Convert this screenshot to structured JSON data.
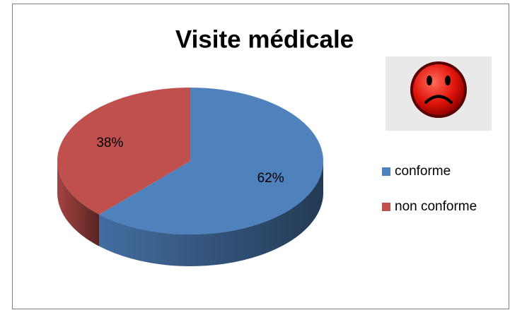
{
  "chart_data": {
    "type": "pie",
    "title": "Visite médicale",
    "categories": [
      "conforme",
      "non conforme"
    ],
    "values": [
      62,
      38
    ],
    "value_labels": [
      "62%",
      "38%"
    ],
    "colors": [
      "#4f81bd",
      "#c0504d"
    ],
    "legend": "right"
  }
}
